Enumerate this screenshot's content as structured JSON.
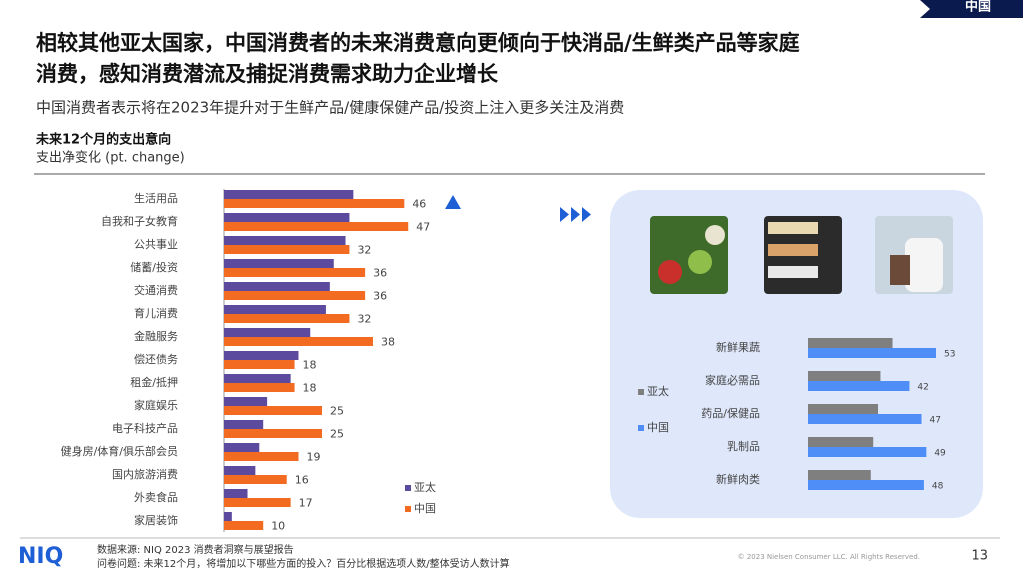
{
  "header": {
    "tag": "中国",
    "title_lines": [
      "相较其他亚太国家，中国消费者的未来消费意向更倾向于快消品/生鲜类产品等家庭",
      "消费，感知消费潜流及捕捉消费需求助力企业增长"
    ],
    "subtitle": "中国消费者表示将在2023年提升对于生鲜产品/健康保健产品/投资上注入更多关注及消费"
  },
  "chart_data": [
    {
      "type": "bar",
      "orientation": "horizontal",
      "title": "未来12个月的支出意向",
      "subtitle": "支出净变化 (pt. change)",
      "categories": [
        "生活用品",
        "自我和子女教育",
        "公共事业",
        "储蓄/投资",
        "交通消费",
        "育儿消费",
        "金融服务",
        "偿还债务",
        "租金/抵押",
        "家庭娱乐",
        "电子科技产品",
        "健身房/体育/俱乐部会员",
        "国内旅游消费",
        "外卖食品",
        "家居装饰"
      ],
      "series": [
        {
          "name": "亚太",
          "color": "#5b4a9e",
          "values": [
            33,
            32,
            31,
            28,
            27,
            26,
            22,
            19,
            17,
            11,
            10,
            9,
            8,
            6,
            2
          ]
        },
        {
          "name": "中国",
          "color": "#f26b21",
          "values": [
            46,
            47,
            32,
            36,
            36,
            32,
            38,
            18,
            18,
            25,
            25,
            19,
            16,
            17,
            10
          ],
          "show_labels": true
        }
      ],
      "legend": "lower right"
    },
    {
      "type": "bar",
      "orientation": "horizontal",
      "categories": [
        "新鲜果蔬",
        "家庭必需品",
        "药品/保健品",
        "乳制品",
        "新鲜肉类"
      ],
      "series": [
        {
          "name": "亚太",
          "color": "#7f7f7f",
          "values": [
            35,
            30,
            29,
            27,
            26
          ]
        },
        {
          "name": "中国",
          "color": "#4f8ef7",
          "values": [
            53,
            42,
            47,
            49,
            48
          ],
          "show_labels": true
        }
      ],
      "legend": "left"
    }
  ],
  "footer": {
    "logo": "NIQ",
    "source": "数据来源: NIQ 2023 消费者洞察与展望报告",
    "question": "问卷问题: 未来12个月，将增加以下哪些方面的投入？百分比根据选项人数/整体受访人数计算",
    "copyright": "© 2023 Nielsen Consumer LLC. All Rights Reserved.",
    "page": "13"
  }
}
